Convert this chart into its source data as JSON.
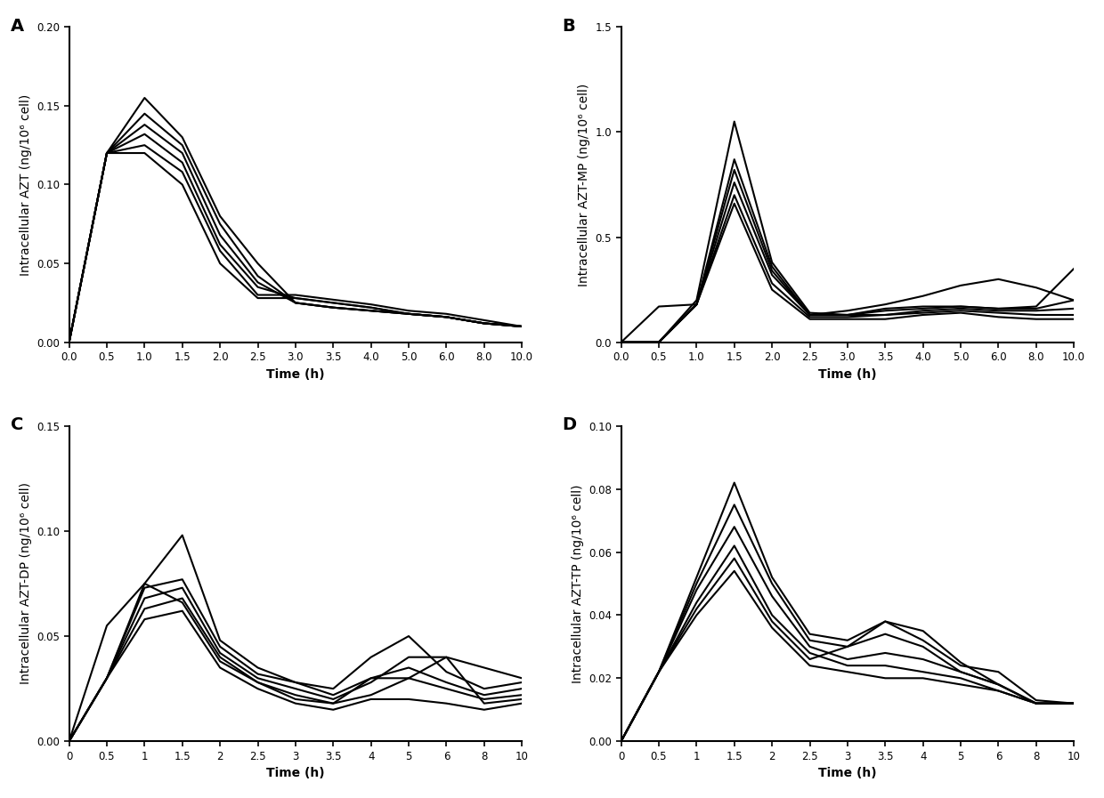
{
  "panel_A": {
    "label": "A",
    "ylabel": "Intracellular AZT (ng/10⁶ cell)",
    "xlabel": "Time (h)",
    "xtick_positions": [
      0,
      1,
      2,
      3,
      4,
      5,
      6,
      7,
      8,
      9,
      10,
      11,
      12
    ],
    "xticklabels": [
      "0.0",
      "0.5",
      "1.0",
      "1.5",
      "2.0",
      "2.5",
      "3.0",
      "3.5",
      "4.0",
      "5.0",
      "6.0",
      "8.0",
      "10.0"
    ],
    "xlim": [
      0,
      12
    ],
    "ylim": [
      0.0,
      0.2
    ],
    "yticks": [
      0.0,
      0.05,
      0.1,
      0.15,
      0.2
    ],
    "yticklabels": [
      "0.00",
      "0.05",
      "0.10",
      "0.15",
      "0.20"
    ],
    "values": [
      [
        0.0,
        0.12,
        0.155,
        0.13,
        0.08,
        0.05,
        0.025,
        0.022,
        0.02,
        0.018,
        0.016,
        0.012,
        0.01
      ],
      [
        0.0,
        0.12,
        0.145,
        0.125,
        0.075,
        0.042,
        0.025,
        0.022,
        0.02,
        0.018,
        0.016,
        0.012,
        0.01
      ],
      [
        0.0,
        0.12,
        0.138,
        0.12,
        0.068,
        0.038,
        0.025,
        0.022,
        0.02,
        0.018,
        0.016,
        0.012,
        0.01
      ],
      [
        0.0,
        0.12,
        0.132,
        0.114,
        0.062,
        0.035,
        0.028,
        0.025,
        0.022,
        0.018,
        0.016,
        0.012,
        0.01
      ],
      [
        0.0,
        0.12,
        0.125,
        0.108,
        0.058,
        0.03,
        0.03,
        0.027,
        0.024,
        0.02,
        0.018,
        0.014,
        0.01
      ],
      [
        0.0,
        0.12,
        0.12,
        0.1,
        0.05,
        0.028,
        0.028,
        0.025,
        0.022,
        0.018,
        0.016,
        0.012,
        0.01
      ]
    ]
  },
  "panel_B": {
    "label": "B",
    "ylabel": "Intracellular AZT-MP (ng/10⁶ cell)",
    "xlabel": "Time (h)",
    "xtick_positions": [
      0,
      1,
      2,
      3,
      4,
      5,
      6,
      7,
      8,
      9,
      10,
      11,
      12
    ],
    "xticklabels": [
      "0.0",
      "0.5",
      "1.0",
      "1.5",
      "2.0",
      "2.5",
      "3.0",
      "3.5",
      "4.0",
      "5.0",
      "6.0",
      "8.0",
      "10.0"
    ],
    "xlim": [
      0,
      12
    ],
    "ylim": [
      0.0,
      1.5
    ],
    "yticks": [
      0.0,
      0.5,
      1.0,
      1.5
    ],
    "yticklabels": [
      "0.0",
      "0.5",
      "1.0",
      "1.5"
    ],
    "values": [
      [
        0.0,
        0.0,
        0.2,
        1.05,
        0.38,
        0.14,
        0.13,
        0.16,
        0.17,
        0.17,
        0.16,
        0.17,
        0.35
      ],
      [
        0.0,
        0.0,
        0.18,
        0.87,
        0.36,
        0.13,
        0.13,
        0.15,
        0.16,
        0.17,
        0.16,
        0.16,
        0.2
      ],
      [
        0.0,
        0.0,
        0.18,
        0.82,
        0.34,
        0.13,
        0.15,
        0.18,
        0.22,
        0.27,
        0.3,
        0.26,
        0.2
      ],
      [
        0.0,
        0.0,
        0.18,
        0.76,
        0.32,
        0.13,
        0.13,
        0.13,
        0.15,
        0.16,
        0.15,
        0.15,
        0.16
      ],
      [
        0.0,
        0.0,
        0.18,
        0.7,
        0.28,
        0.12,
        0.12,
        0.13,
        0.14,
        0.15,
        0.14,
        0.13,
        0.13
      ],
      [
        0.0,
        0.17,
        0.18,
        0.66,
        0.25,
        0.11,
        0.11,
        0.11,
        0.13,
        0.14,
        0.12,
        0.11,
        0.11
      ]
    ]
  },
  "panel_C": {
    "label": "C",
    "ylabel": "Intracellular AZT-DP (ng/10⁶ cell)",
    "xlabel": "Time (h)",
    "xtick_positions": [
      0,
      1,
      2,
      3,
      4,
      5,
      6,
      7,
      8,
      9,
      10,
      11,
      12
    ],
    "xticklabels": [
      "0",
      "0.5",
      "1",
      "1.5",
      "2",
      "2.5",
      "3",
      "3.5",
      "4",
      "5",
      "6",
      "8",
      "10"
    ],
    "xlim": [
      0,
      12
    ],
    "ylim": [
      0.0,
      0.15
    ],
    "yticks": [
      0.0,
      0.05,
      0.1,
      0.15
    ],
    "yticklabels": [
      "0.00",
      "0.05",
      "0.10",
      "0.15"
    ],
    "values": [
      [
        0.0,
        0.03,
        0.075,
        0.098,
        0.048,
        0.035,
        0.028,
        0.025,
        0.04,
        0.05,
        0.033,
        0.025,
        0.028
      ],
      [
        0.0,
        0.03,
        0.073,
        0.077,
        0.045,
        0.032,
        0.028,
        0.022,
        0.03,
        0.035,
        0.028,
        0.022,
        0.025
      ],
      [
        0.0,
        0.03,
        0.068,
        0.073,
        0.042,
        0.03,
        0.025,
        0.02,
        0.028,
        0.04,
        0.04,
        0.035,
        0.03
      ],
      [
        0.0,
        0.03,
        0.063,
        0.068,
        0.04,
        0.028,
        0.022,
        0.018,
        0.03,
        0.03,
        0.025,
        0.02,
        0.022
      ],
      [
        0.0,
        0.055,
        0.075,
        0.066,
        0.038,
        0.028,
        0.02,
        0.018,
        0.022,
        0.03,
        0.04,
        0.018,
        0.02
      ],
      [
        0.0,
        0.03,
        0.058,
        0.062,
        0.035,
        0.025,
        0.018,
        0.015,
        0.02,
        0.02,
        0.018,
        0.015,
        0.018
      ]
    ]
  },
  "panel_D": {
    "label": "D",
    "ylabel": "Intracellular AZT-TP (ng/10⁶ cell)",
    "xlabel": "Time (h)",
    "xtick_positions": [
      0,
      1,
      2,
      3,
      4,
      5,
      6,
      7,
      8,
      9,
      10,
      11,
      12
    ],
    "xticklabels": [
      "0",
      "0.5",
      "1",
      "1.5",
      "2",
      "2.5",
      "3",
      "3.5",
      "4",
      "5",
      "6",
      "8",
      "10"
    ],
    "xlim": [
      0,
      12
    ],
    "ylim": [
      0.0,
      0.1
    ],
    "yticks": [
      0.0,
      0.02,
      0.04,
      0.06,
      0.08,
      0.1
    ],
    "yticklabels": [
      "0.00",
      "0.02",
      "0.04",
      "0.06",
      "0.08",
      "0.10"
    ],
    "values": [
      [
        0.0,
        0.022,
        0.052,
        0.082,
        0.052,
        0.034,
        0.032,
        0.038,
        0.035,
        0.025,
        0.018,
        0.012,
        0.012
      ],
      [
        0.0,
        0.022,
        0.05,
        0.075,
        0.05,
        0.032,
        0.03,
        0.034,
        0.03,
        0.022,
        0.018,
        0.012,
        0.012
      ],
      [
        0.0,
        0.022,
        0.048,
        0.068,
        0.046,
        0.03,
        0.026,
        0.028,
        0.026,
        0.022,
        0.018,
        0.012,
        0.012
      ],
      [
        0.0,
        0.022,
        0.044,
        0.062,
        0.04,
        0.028,
        0.024,
        0.024,
        0.022,
        0.02,
        0.016,
        0.012,
        0.012
      ],
      [
        0.0,
        0.022,
        0.042,
        0.058,
        0.038,
        0.026,
        0.03,
        0.038,
        0.032,
        0.024,
        0.022,
        0.013,
        0.012
      ],
      [
        0.0,
        0.022,
        0.04,
        0.054,
        0.036,
        0.024,
        0.022,
        0.02,
        0.02,
        0.018,
        0.016,
        0.012,
        0.012
      ]
    ]
  },
  "line_color": "#000000",
  "line_width": 1.5,
  "background_color": "#ffffff",
  "label_fontsize": 10,
  "tick_fontsize": 8.5,
  "panel_label_fontsize": 14
}
